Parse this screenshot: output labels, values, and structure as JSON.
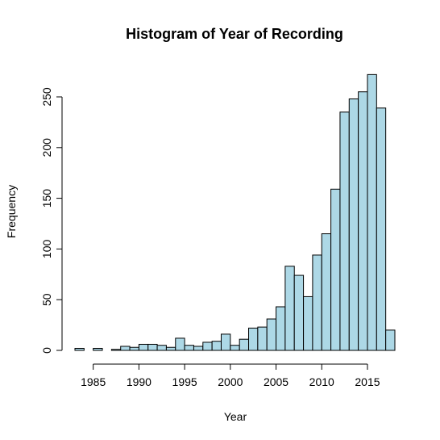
{
  "chart_data": {
    "type": "bar",
    "title": "Histogram of Year of Recording",
    "xlabel": "Year",
    "ylabel": "Frequency",
    "bar_color": "#add8e6",
    "border_color": "#000000",
    "bin_edges": [
      1983,
      1984,
      1985,
      1986,
      1987,
      1988,
      1989,
      1990,
      1991,
      1992,
      1993,
      1994,
      1995,
      1996,
      1997,
      1998,
      1999,
      2000,
      2001,
      2002,
      2003,
      2004,
      2005,
      2006,
      2007,
      2008,
      2009,
      2010,
      2011,
      2012,
      2013,
      2014,
      2015,
      2016,
      2017,
      2018
    ],
    "values": [
      2,
      0,
      2,
      0,
      1,
      4,
      3,
      6,
      6,
      5,
      3,
      12,
      5,
      4,
      8,
      9,
      16,
      5,
      11,
      22,
      23,
      31,
      43,
      83,
      74,
      53,
      94,
      115,
      159,
      235,
      248,
      255,
      272,
      239,
      20
    ],
    "xlim": [
      1983,
      2018
    ],
    "ylim": [
      0,
      280
    ],
    "x_ticks": [
      1985,
      1990,
      1995,
      2000,
      2005,
      2010,
      2015
    ],
    "y_ticks": [
      0,
      50,
      100,
      150,
      200,
      250
    ],
    "x_tick_labels": [
      "1985",
      "1990",
      "1995",
      "2000",
      "2005",
      "2010",
      "2015"
    ],
    "y_tick_labels": [
      "0",
      "50",
      "100",
      "150",
      "200",
      "250"
    ]
  }
}
